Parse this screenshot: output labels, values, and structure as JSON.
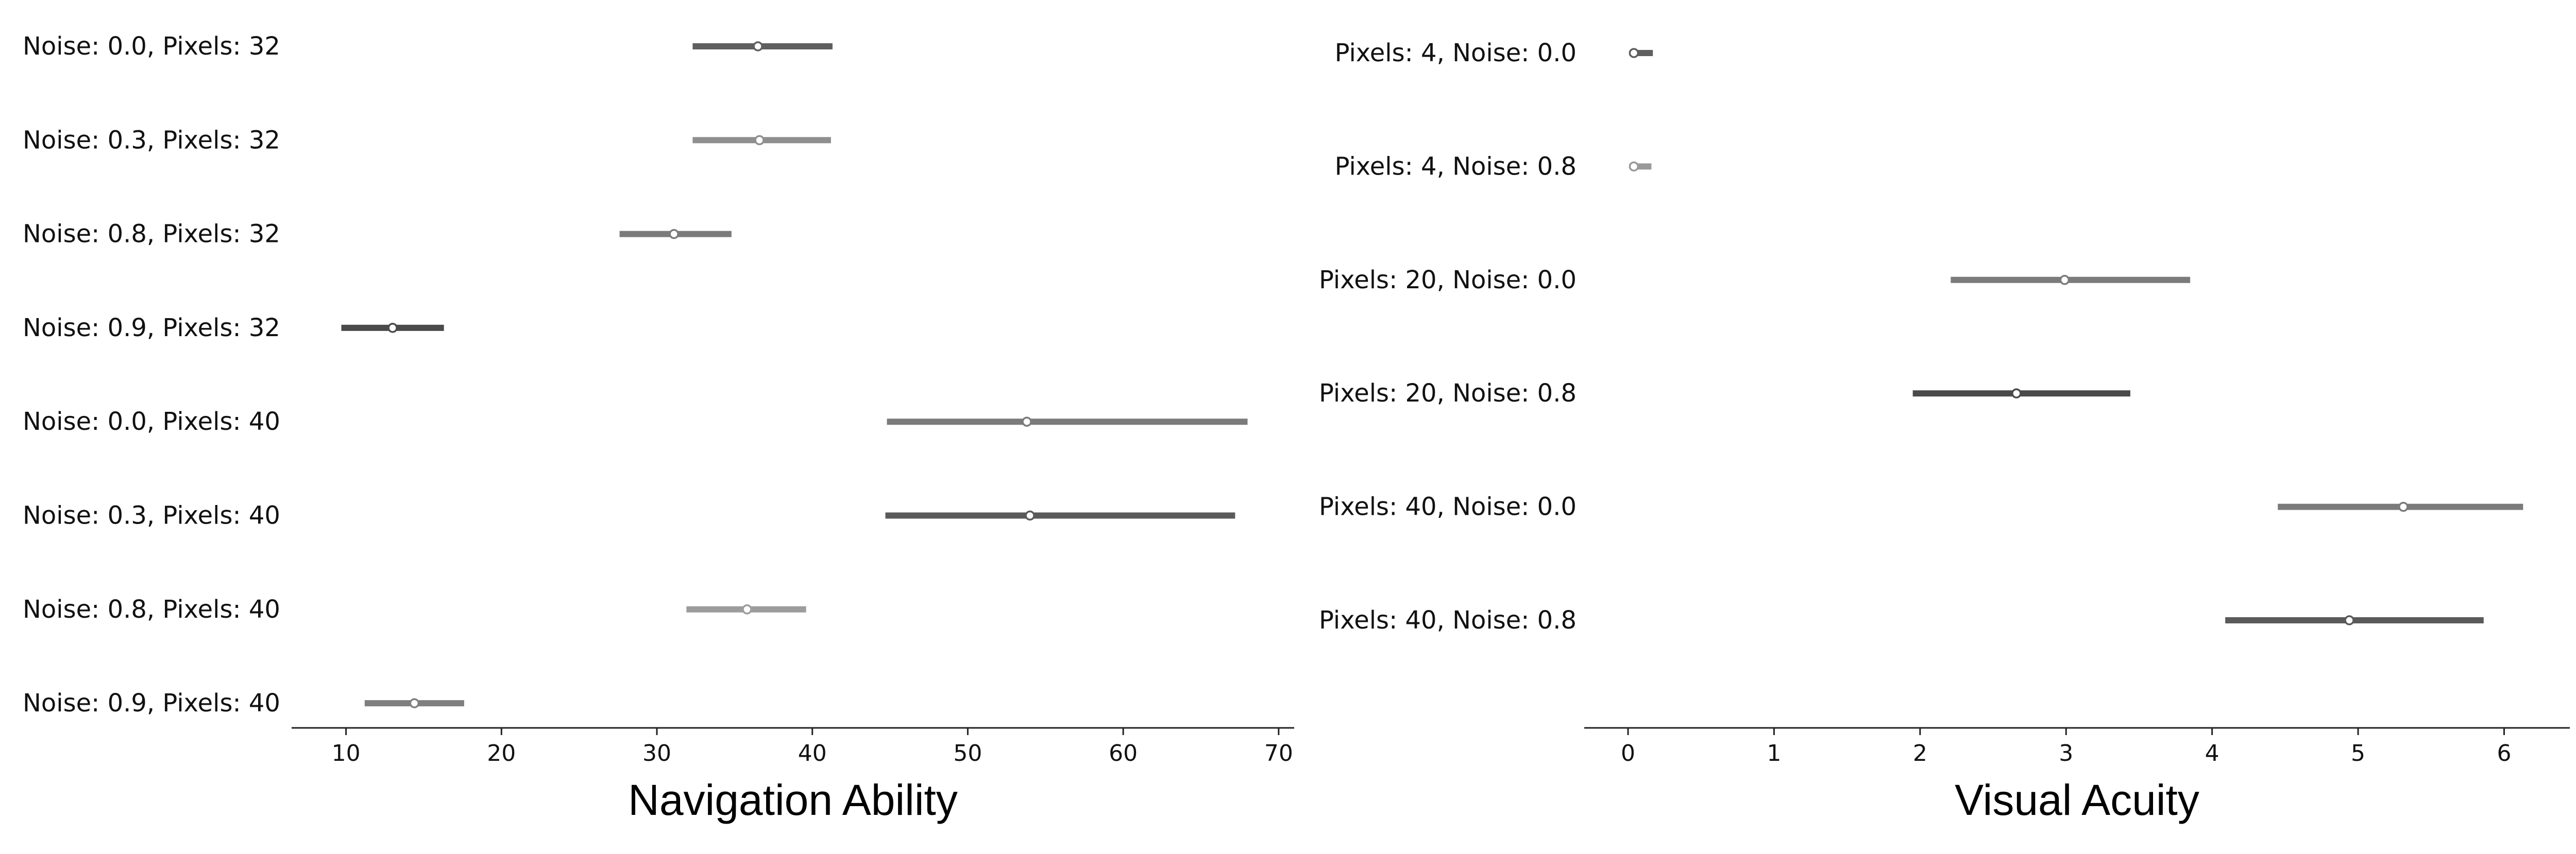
{
  "chart_data": [
    {
      "type": "interval",
      "xlabel": "Navigation Ability",
      "xlim": [
        6.5,
        71
      ],
      "xticks": [
        10,
        20,
        30,
        40,
        50,
        60,
        70
      ],
      "rows": [
        {
          "label": "Noise: 0.0, Pixels: 32",
          "mean": 36.5,
          "low": 32.3,
          "high": 41.3,
          "color": "#5f5f5f"
        },
        {
          "label": "Noise: 0.3, Pixels: 32",
          "mean": 36.6,
          "low": 32.3,
          "high": 41.2,
          "color": "#8f8f8f"
        },
        {
          "label": "Noise: 0.8, Pixels: 32",
          "mean": 31.1,
          "low": 27.6,
          "high": 34.8,
          "color": "#7b7b7b"
        },
        {
          "label": "Noise: 0.9, Pixels: 32",
          "mean": 13.0,
          "low": 9.7,
          "high": 16.3,
          "color": "#4a4a4a"
        },
        {
          "label": "Noise: 0.0, Pixels: 40",
          "mean": 53.8,
          "low": 44.8,
          "high": 68.0,
          "color": "#7b7b7b"
        },
        {
          "label": "Noise: 0.3, Pixels: 40",
          "mean": 54.0,
          "low": 44.7,
          "high": 67.2,
          "color": "#5a5a5a"
        },
        {
          "label": "Noise: 0.8, Pixels: 40",
          "mean": 35.8,
          "low": 31.9,
          "high": 39.6,
          "color": "#9c9c9c"
        },
        {
          "label": "Noise: 0.9, Pixels: 40",
          "mean": 14.4,
          "low": 11.2,
          "high": 17.6,
          "color": "#7f7f7f"
        }
      ]
    },
    {
      "type": "interval",
      "xlabel": "Visual Acuity",
      "xlim": [
        -0.3,
        6.45
      ],
      "xticks": [
        0,
        1,
        2,
        3,
        4,
        5,
        6
      ],
      "rows": [
        {
          "label": "Pixels: 4, Noise: 0.0",
          "mean": 0.04,
          "low": 0.01,
          "high": 0.17,
          "color": "#5f5f5f"
        },
        {
          "label": "Pixels: 4, Noise: 0.8",
          "mean": 0.04,
          "low": 0.01,
          "high": 0.16,
          "color": "#999999"
        },
        {
          "label": "Pixels: 20, Noise: 0.0",
          "mean": 2.99,
          "low": 2.21,
          "high": 3.85,
          "color": "#7b7b7b"
        },
        {
          "label": "Pixels: 20, Noise: 0.8",
          "mean": 2.66,
          "low": 1.95,
          "high": 3.44,
          "color": "#4a4a4a"
        },
        {
          "label": "Pixels: 40, Noise: 0.0",
          "mean": 5.31,
          "low": 4.45,
          "high": 6.13,
          "color": "#7b7b7b"
        },
        {
          "label": "Pixels: 40, Noise: 0.8",
          "mean": 4.94,
          "low": 4.09,
          "high": 5.86,
          "color": "#5a5a5a"
        }
      ]
    }
  ]
}
